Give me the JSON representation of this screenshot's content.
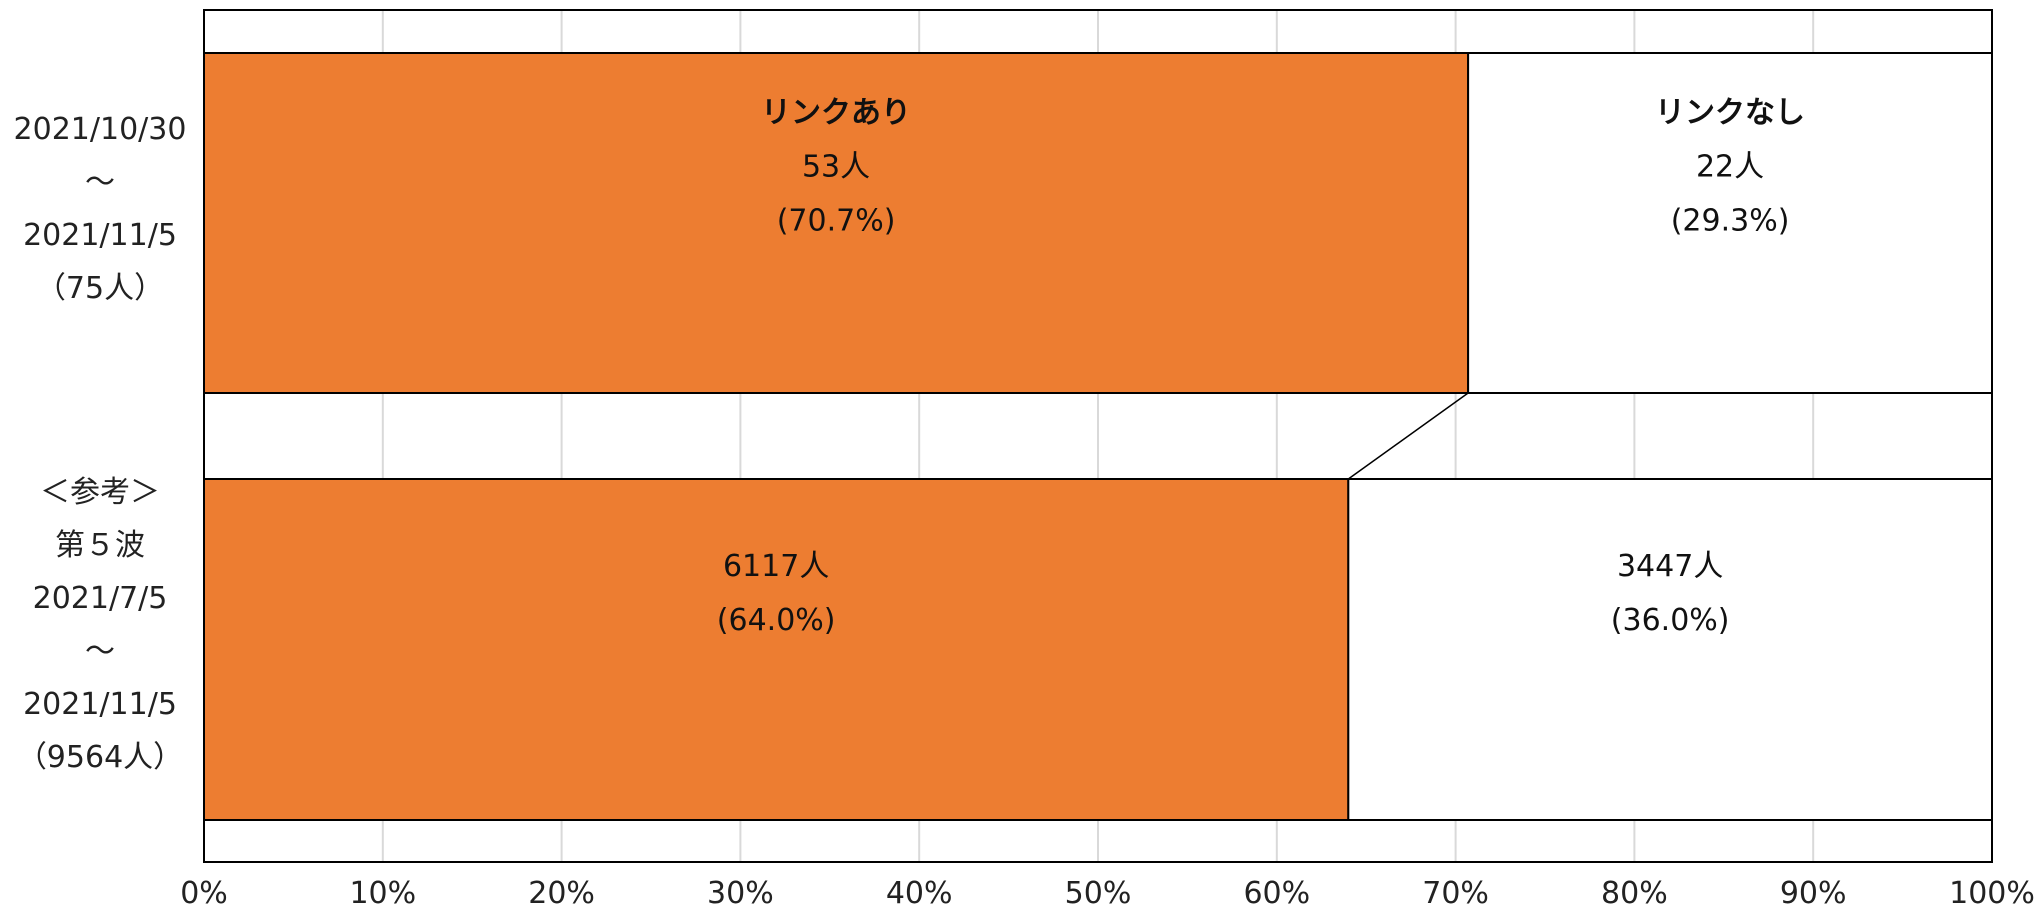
{
  "chart_data": {
    "type": "bar",
    "stacked": true,
    "orientation": "horizontal",
    "percent_stacked": true,
    "categories": [
      [
        "2021/10/30",
        "～",
        "2021/11/5",
        "（75人）"
      ],
      [
        "＜参考＞",
        "第５波",
        "2021/7/5",
        "～",
        "2021/11/5",
        "（9564人）"
      ]
    ],
    "series": [
      {
        "name": "リンクあり",
        "values": [
          70.7,
          64.0
        ],
        "counts": [
          "53人",
          "6117人"
        ],
        "percents": [
          "(70.7%)",
          "(64.0%)"
        ],
        "color": "#ED7D31"
      },
      {
        "name": "リンクなし",
        "values": [
          29.3,
          36.0
        ],
        "counts": [
          "22人",
          "3447人"
        ],
        "percents": [
          "(29.3%)",
          "(36.0%)"
        ],
        "color": "#FFFFFF"
      }
    ],
    "xlim": [
      0,
      100
    ],
    "x_ticks": [
      "0%",
      "10%",
      "20%",
      "30%",
      "40%",
      "50%",
      "60%",
      "70%",
      "80%",
      "90%",
      "100%"
    ],
    "series_lines": true,
    "grid": true,
    "legend": "none"
  }
}
